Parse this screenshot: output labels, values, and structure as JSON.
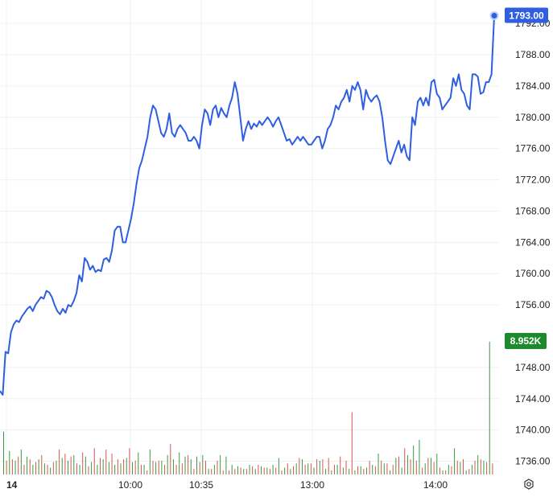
{
  "chart_data": {
    "type": "line",
    "ylim": [
      1734,
      1795
    ],
    "y_ticks": [
      1792.0,
      1788.0,
      1784.0,
      1780.0,
      1776.0,
      1772.0,
      1768.0,
      1764.0,
      1760.0,
      1756.0,
      1748.0,
      1744.0,
      1740.0,
      1736.0
    ],
    "x_tick_labels": [
      "14",
      "10:00",
      "10:35",
      "13:00",
      "14:00"
    ],
    "last_price_label": "1793.00",
    "volume_label": "8.952K",
    "grid": true,
    "price": [
      1745.0,
      1744.5,
      1750.0,
      1749.8,
      1752.5,
      1753.5,
      1754.0,
      1753.8,
      1754.5,
      1755.0,
      1755.5,
      1755.8,
      1755.2,
      1756.0,
      1756.5,
      1757.0,
      1756.8,
      1757.8,
      1757.6,
      1757.0,
      1756.0,
      1755.2,
      1754.8,
      1755.5,
      1755.0,
      1756.0,
      1755.8,
      1756.5,
      1757.5,
      1759.8,
      1759.0,
      1762.0,
      1761.5,
      1760.5,
      1761.0,
      1760.2,
      1760.5,
      1760.3,
      1761.8,
      1762.0,
      1761.5,
      1763.0,
      1765.5,
      1766.0,
      1766.0,
      1764.0,
      1764.0,
      1765.5,
      1767.0,
      1769.0,
      1771.5,
      1773.5,
      1774.5,
      1776.0,
      1777.5,
      1780.0,
      1781.5,
      1781.0,
      1779.5,
      1778.0,
      1777.5,
      1778.5,
      1780.5,
      1778.0,
      1777.5,
      1778.5,
      1779.0,
      1778.5,
      1778.0,
      1777.0,
      1777.0,
      1777.5,
      1777.0,
      1776.0,
      1779.0,
      1781.0,
      1780.5,
      1779.0,
      1781.0,
      1781.5,
      1780.0,
      1781.2,
      1780.5,
      1780.0,
      1781.5,
      1782.5,
      1784.5,
      1783.0,
      1780.0,
      1777.0,
      1778.5,
      1779.5,
      1778.5,
      1779.2,
      1778.8,
      1779.5,
      1779.0,
      1779.5,
      1780.0,
      1779.5,
      1778.8,
      1779.5,
      1780.0,
      1779.0,
      1778.0,
      1777.0,
      1777.2,
      1776.5,
      1777.0,
      1777.5,
      1777.0,
      1777.5,
      1777.0,
      1776.5,
      1776.5,
      1777.0,
      1777.5,
      1777.5,
      1776.0,
      1777.0,
      1778.5,
      1779.0,
      1780.0,
      1781.5,
      1781.0,
      1782.0,
      1782.5,
      1783.5,
      1782.0,
      1784.0,
      1783.5,
      1784.5,
      1783.5,
      1781.0,
      1783.5,
      1782.5,
      1782.0,
      1782.5,
      1782.8,
      1782.0,
      1780.0,
      1777.0,
      1774.5,
      1774.0,
      1775.0,
      1776.0,
      1777.0,
      1775.5,
      1776.5,
      1775.0,
      1774.5,
      1780.0,
      1779.0,
      1782.0,
      1782.5,
      1781.5,
      1782.5,
      1781.5,
      1784.5,
      1784.8,
      1783.0,
      1782.5,
      1781.0,
      1781.5,
      1782.0,
      1782.5,
      1785.0,
      1784.0,
      1785.5,
      1783.5,
      1783.0,
      1781.5,
      1781.0,
      1785.5,
      1785.5,
      1785.2,
      1783.0,
      1783.2,
      1784.5,
      1784.5,
      1785.5,
      1793.0
    ],
    "volume_green": [
      0.31,
      0.17,
      0.1,
      0.18,
      0.13,
      0.07,
      0.11,
      0.08,
      0.05,
      0.1,
      0.12,
      0.1,
      0.14,
      0.07,
      0.13,
      0.09,
      0.07,
      0.11,
      0.09,
      0.07,
      0.08,
      0.12,
      0.09,
      0.16,
      0.07,
      0.18,
      0.09,
      0.1,
      0.14,
      0.11,
      0.16,
      0.13,
      0.11,
      0.13,
      0.14,
      0.04,
      0.07,
      0.14,
      0.13,
      0.07,
      0.06,
      0.04,
      0.07,
      0.04,
      0.06,
      0.05,
      0.07,
      0.12,
      0.05,
      0.04,
      0.08,
      0.11,
      0.08,
      0.05,
      0.1,
      0.04,
      0.03,
      0.07,
      0.05,
      0.04,
      0.03,
      0.06,
      0.05,
      0.07,
      0.15,
      0.08,
      0.03,
      0.12,
      0.05,
      0.14,
      0.21,
      0.25,
      0.08,
      0.12,
      0.15,
      0.03,
      0.07,
      0.19,
      0.09,
      0.03,
      0.07,
      0.14,
      0.1,
      0.96
    ],
    "volume_red": [
      0.1,
      0.11,
      0.13,
      0.07,
      0.11,
      0.09,
      0.14,
      0.07,
      0.09,
      0.18,
      0.15,
      0.13,
      0.08,
      0.16,
      0.06,
      0.19,
      0.12,
      0.18,
      0.15,
      0.11,
      0.11,
      0.19,
      0.1,
      0.07,
      0.03,
      0.1,
      0.1,
      0.07,
      0.22,
      0.07,
      0.08,
      0.14,
      0.04,
      0.09,
      0.1,
      0.04,
      0.1,
      0.03,
      0.03,
      0.04,
      0.05,
      0.04,
      0.06,
      0.07,
      0.05,
      0.04,
      0.05,
      0.03,
      0.08,
      0.06,
      0.12,
      0.07,
      0.08,
      0.11,
      0.11,
      0.12,
      0.07,
      0.13,
      0.1,
      0.45,
      0.06,
      0.04,
      0.1,
      0.06,
      0.1,
      0.08,
      0.07,
      0.13,
      0.19,
      0.11,
      0.1,
      0.05,
      0.12,
      0.09,
      0.05,
      0.03,
      0.06,
      0.1,
      0.11,
      0.04,
      0.1,
      0.11,
      0.09,
      0.08
    ],
    "colors": {
      "line": "#2f5ee0",
      "price_tag_bg": "#2f5ee0",
      "volume_tag_bg": "#1e8a2e",
      "volume_up": "#3a9a3f",
      "volume_down": "#d9534f",
      "grid": "#eef0f4",
      "axis_text": "#222222"
    }
  },
  "toolbar": {
    "settings_icon": "settings-gear-icon"
  }
}
